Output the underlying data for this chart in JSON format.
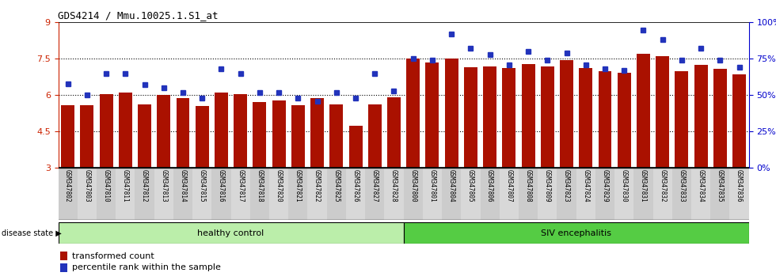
{
  "title": "GDS4214 / Mmu.10025.1.S1_at",
  "samples": [
    "GSM347802",
    "GSM347803",
    "GSM347810",
    "GSM347811",
    "GSM347812",
    "GSM347813",
    "GSM347814",
    "GSM347815",
    "GSM347816",
    "GSM347817",
    "GSM347818",
    "GSM347820",
    "GSM347821",
    "GSM347822",
    "GSM347825",
    "GSM347826",
    "GSM347827",
    "GSM347828",
    "GSM347800",
    "GSM347801",
    "GSM347804",
    "GSM347805",
    "GSM347806",
    "GSM347807",
    "GSM347808",
    "GSM347809",
    "GSM347823",
    "GSM347824",
    "GSM347829",
    "GSM347830",
    "GSM347831",
    "GSM347832",
    "GSM347833",
    "GSM347834",
    "GSM347835",
    "GSM347836"
  ],
  "bar_values": [
    5.6,
    5.6,
    6.05,
    6.12,
    5.62,
    6.0,
    5.88,
    5.55,
    6.12,
    6.05,
    5.72,
    5.78,
    5.6,
    5.88,
    5.62,
    4.75,
    5.62,
    5.9,
    7.5,
    7.35,
    7.5,
    7.15,
    7.2,
    7.12,
    7.28,
    7.2,
    7.45,
    7.12,
    7.0,
    6.92,
    7.72,
    7.62,
    7.0,
    7.25,
    7.1,
    6.85
  ],
  "percentile_values": [
    58,
    50,
    65,
    65,
    57,
    55,
    52,
    48,
    68,
    65,
    52,
    52,
    48,
    46,
    52,
    48,
    65,
    53,
    75,
    74,
    92,
    82,
    78,
    71,
    80,
    74,
    79,
    71,
    68,
    67,
    95,
    88,
    74,
    82,
    74,
    69
  ],
  "healthy_count": 18,
  "siv_count": 18,
  "ylim_left": [
    3,
    9
  ],
  "yticks_left": [
    3,
    4.5,
    6,
    7.5,
    9
  ],
  "yticks_right": [
    0,
    25,
    50,
    75,
    100
  ],
  "ylim_right": [
    0,
    100
  ],
  "bar_color": "#aa1100",
  "percentile_color": "#2233bb",
  "healthy_color": "#bbeeaa",
  "siv_color": "#55cc44",
  "grid_color": "#000000",
  "left_tick_color": "#cc2200",
  "right_tick_color": "#0000cc",
  "bg_color": "#ffffff",
  "tick_label_bg": "#cccccc"
}
